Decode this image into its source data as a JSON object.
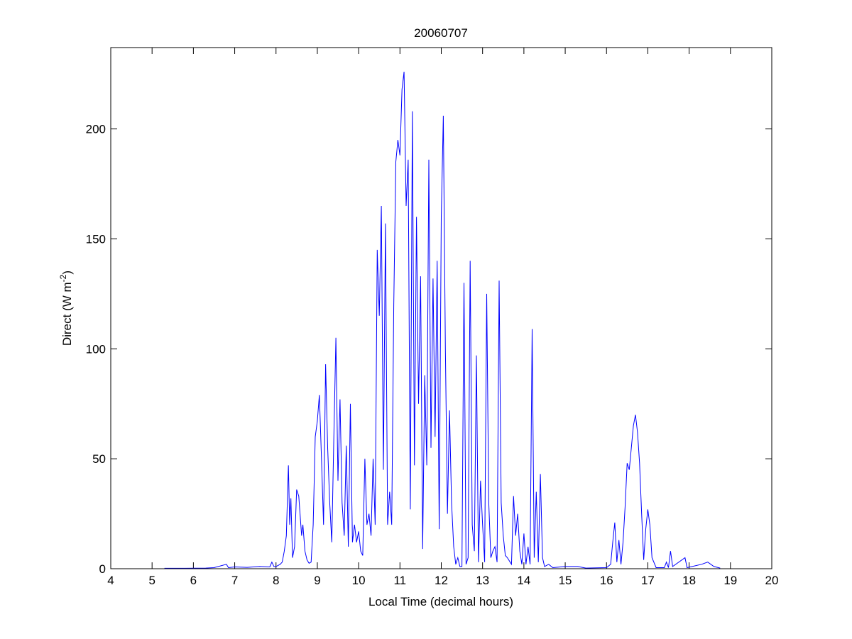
{
  "chart_data": {
    "type": "line",
    "title": "20060707",
    "xlabel": "Local Time (decimal hours)",
    "ylabel": {
      "base": "Direct (W m",
      "sup": "-2",
      "end": ")"
    },
    "xlim": [
      4,
      20
    ],
    "ylim": [
      0,
      237
    ],
    "xticks": [
      4,
      5,
      6,
      7,
      8,
      9,
      10,
      11,
      12,
      13,
      14,
      15,
      16,
      17,
      18,
      19,
      20
    ],
    "yticks": [
      0,
      50,
      100,
      150,
      200
    ],
    "grid": false,
    "line_color": "#0000ff",
    "series": [
      {
        "name": "Direct",
        "x": [
          5.3,
          5.8,
          6.3,
          6.5,
          6.8,
          6.85,
          7.0,
          7.3,
          7.6,
          7.85,
          7.9,
          7.95,
          8.0,
          8.1,
          8.15,
          8.2,
          8.25,
          8.3,
          8.33,
          8.36,
          8.4,
          8.45,
          8.5,
          8.55,
          8.6,
          8.62,
          8.65,
          8.7,
          8.75,
          8.8,
          8.85,
          8.9,
          8.95,
          9.0,
          9.05,
          9.1,
          9.15,
          9.2,
          9.25,
          9.3,
          9.35,
          9.4,
          9.45,
          9.5,
          9.55,
          9.6,
          9.65,
          9.7,
          9.75,
          9.8,
          9.85,
          9.9,
          9.95,
          10.0,
          10.05,
          10.1,
          10.15,
          10.2,
          10.25,
          10.3,
          10.35,
          10.4,
          10.45,
          10.5,
          10.55,
          10.6,
          10.65,
          10.7,
          10.75,
          10.8,
          10.85,
          10.9,
          10.95,
          11.0,
          11.05,
          11.1,
          11.15,
          11.2,
          11.25,
          11.3,
          11.35,
          11.4,
          11.45,
          11.5,
          11.55,
          11.6,
          11.65,
          11.7,
          11.75,
          11.8,
          11.85,
          11.9,
          11.95,
          12.0,
          12.05,
          12.1,
          12.15,
          12.2,
          12.25,
          12.3,
          12.35,
          12.4,
          12.45,
          12.5,
          12.55,
          12.6,
          12.65,
          12.7,
          12.75,
          12.8,
          12.85,
          12.9,
          12.95,
          13.0,
          13.05,
          13.1,
          13.15,
          13.2,
          13.25,
          13.3,
          13.35,
          13.4,
          13.45,
          13.5,
          13.55,
          13.6,
          13.7,
          13.75,
          13.8,
          13.85,
          13.9,
          13.95,
          14.0,
          14.05,
          14.1,
          14.15,
          14.2,
          14.25,
          14.3,
          14.35,
          14.4,
          14.45,
          14.5,
          14.6,
          14.7,
          15.0,
          15.3,
          15.5,
          16.0,
          16.1,
          16.15,
          16.2,
          16.25,
          16.3,
          16.35,
          16.4,
          16.45,
          16.5,
          16.55,
          16.6,
          16.65,
          16.7,
          16.75,
          16.8,
          16.85,
          16.9,
          16.95,
          17.0,
          17.05,
          17.1,
          17.2,
          17.4,
          17.45,
          17.5,
          17.55,
          17.6,
          17.9,
          17.95,
          18.3,
          18.45,
          18.6,
          18.75
        ],
        "y": [
          0.2,
          0.2,
          0.3,
          0.5,
          2,
          0.5,
          0.8,
          0.6,
          1,
          0.8,
          3,
          1,
          1,
          2,
          3,
          8,
          15,
          47,
          20,
          32,
          5,
          10,
          36,
          33,
          20,
          15,
          20,
          8,
          4,
          2.5,
          3,
          20,
          60,
          67,
          79,
          50,
          20,
          93,
          55,
          30,
          12,
          60,
          105,
          40,
          77,
          30,
          15,
          56,
          10,
          75,
          12,
          20,
          12,
          17,
          8,
          6,
          50,
          20,
          25,
          15,
          50,
          20,
          145,
          115,
          165,
          45,
          157,
          20,
          35,
          20,
          120,
          185,
          195,
          188,
          218,
          226,
          165,
          186,
          27,
          208,
          47,
          160,
          75,
          133,
          9,
          88,
          47,
          186,
          55,
          132,
          60,
          140,
          18,
          160,
          206,
          100,
          25,
          72,
          30,
          10,
          2,
          5,
          1,
          1,
          130,
          2,
          5,
          140,
          20,
          8,
          97,
          3,
          40,
          20,
          3,
          125,
          30,
          5,
          8,
          10,
          3,
          131,
          30,
          15,
          6,
          5,
          2,
          33,
          15,
          25,
          8,
          2,
          16,
          2,
          10,
          2,
          109,
          5,
          35,
          3,
          43,
          5,
          1,
          2,
          0.5,
          1,
          1,
          0.3,
          0.5,
          2,
          12,
          21,
          3,
          13,
          2,
          12,
          28,
          48,
          45,
          55,
          65,
          70,
          62,
          48,
          25,
          4,
          18,
          27,
          20,
          5,
          0.5,
          0.5,
          3,
          0.5,
          8,
          1,
          5,
          0.5,
          2,
          3,
          1,
          0.3
        ]
      }
    ]
  }
}
